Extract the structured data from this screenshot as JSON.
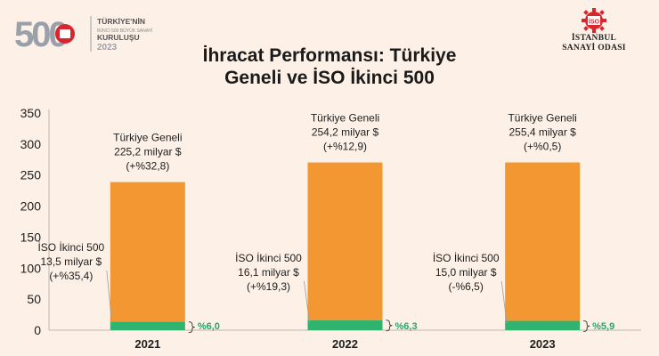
{
  "logo_left": {
    "number": "500",
    "line1": "TÜRKİYE'NİN",
    "line2": "İKİNCİ 500 BÜYÜK SANAYİ",
    "line3": "KURULUŞU",
    "year": "2023"
  },
  "logo_right": {
    "badge": "İSO",
    "line1": "İSTANBUL",
    "line2": "SANAYİ ODASI"
  },
  "colors": {
    "turkiye": "#f39732",
    "iso": "#2fb36f",
    "background": "#fdf0e6"
  },
  "chart_data": {
    "type": "bar",
    "stacked": true,
    "title_line1": "İhracat Performansı: Türkiye",
    "title_line2": "Geneli ve İSO İkinci 500",
    "categories": [
      "2021",
      "2022",
      "2023"
    ],
    "ylim": [
      0,
      350
    ],
    "yticks": [
      0,
      50,
      100,
      150,
      200,
      250,
      300,
      350
    ],
    "grid": false,
    "series": [
      {
        "name": "İSO İkinci 500",
        "values": [
          13.5,
          16.1,
          15.0
        ],
        "labels": [
          [
            "İSO İkinci 500",
            "13,5 milyar $",
            "(+%35,4)"
          ],
          [
            "İSO İkinci 500",
            "16,1 milyar $",
            "(+%19,3)"
          ],
          [
            "İSO İkinci 500",
            "15,0 milyar $",
            "(-%6,5)"
          ]
        ],
        "shares": [
          "%6,0",
          "%6,3",
          "%5,9"
        ]
      },
      {
        "name": "Türkiye Geneli",
        "values": [
          225.2,
          254.2,
          255.4
        ],
        "labels": [
          [
            "Türkiye Geneli",
            "225,2 milyar $",
            "(+%32,8)"
          ],
          [
            "Türkiye Geneli",
            "254,2 milyar $",
            "(+%12,9)"
          ],
          [
            "Türkiye Geneli",
            "255,4 milyar $",
            "(+%0,5)"
          ]
        ]
      }
    ]
  }
}
